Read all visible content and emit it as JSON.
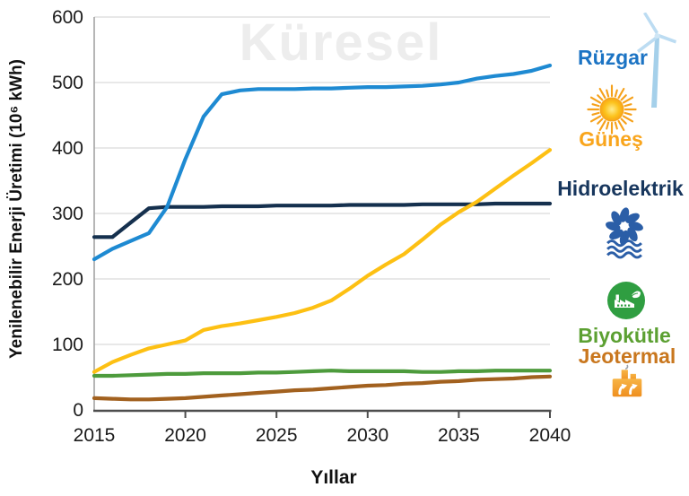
{
  "chart_data": {
    "type": "line",
    "watermark": "Küresel",
    "xlabel": "Yıllar",
    "ylabel": "Yenilenebilir Enerji Üretimi (10⁶ kWh)",
    "x": [
      2015,
      2016,
      2017,
      2018,
      2019,
      2020,
      2021,
      2022,
      2023,
      2024,
      2025,
      2026,
      2027,
      2028,
      2029,
      2030,
      2031,
      2032,
      2033,
      2034,
      2035,
      2036,
      2037,
      2038,
      2039,
      2040
    ],
    "xticks": [
      2015,
      2020,
      2025,
      2030,
      2035,
      2040
    ],
    "ylim": [
      0,
      600
    ],
    "yticks": [
      0,
      100,
      200,
      300,
      400,
      500,
      600
    ],
    "grid": "horizontal",
    "legend_position": "right",
    "series": [
      {
        "name": "Biyokütle",
        "color": "#4d9b3c",
        "values": [
          52,
          52,
          53,
          54,
          55,
          55,
          56,
          56,
          56,
          57,
          57,
          58,
          59,
          60,
          59,
          59,
          59,
          59,
          58,
          58,
          59,
          59,
          60,
          60,
          60,
          60
        ]
      },
      {
        "name": "Jeotermal",
        "color": "#a2611f",
        "values": [
          18,
          17,
          16,
          16,
          17,
          18,
          20,
          22,
          24,
          26,
          28,
          30,
          31,
          33,
          35,
          37,
          38,
          40,
          41,
          43,
          44,
          46,
          47,
          48,
          50,
          51
        ]
      },
      {
        "name": "Hidroelektrik",
        "color": "#15304e",
        "values": [
          264,
          264,
          286,
          308,
          310,
          310,
          310,
          311,
          311,
          311,
          312,
          312,
          312,
          312,
          313,
          313,
          313,
          313,
          314,
          314,
          314,
          314,
          315,
          315,
          315,
          315
        ]
      },
      {
        "name": "Güneş",
        "color": "#fdc013",
        "values": [
          58,
          73,
          84,
          94,
          100,
          106,
          122,
          128,
          132,
          137,
          142,
          148,
          156,
          167,
          185,
          205,
          222,
          238,
          260,
          283,
          302,
          318,
          338,
          358,
          377,
          397
        ]
      },
      {
        "name": "Rüzgar",
        "color": "#1e8ad2",
        "values": [
          230,
          246,
          258,
          270,
          310,
          383,
          448,
          482,
          488,
          490,
          490,
          490,
          491,
          491,
          492,
          493,
          493,
          494,
          495,
          497,
          500,
          506,
          510,
          513,
          518,
          526
        ]
      }
    ]
  },
  "legend": {
    "items": [
      {
        "label": "Rüzgar",
        "color": "#1c74c4",
        "icon": "wind-turbine-icon"
      },
      {
        "label": "Güneş",
        "color": "#f9a51c",
        "icon": "sun-icon"
      },
      {
        "label": "Hidroelektrik",
        "color": "#17365d",
        "icon": "hydro-turbine-icon"
      },
      {
        "label": "Biyokütle",
        "color": "#5ca032",
        "icon": "biomass-icon"
      },
      {
        "label": "Jeotermal",
        "color": "#c9771e",
        "icon": "geothermal-icon"
      }
    ]
  },
  "colors": {
    "gridline": "#d9d9d9",
    "x_axis": "#4d4d4d",
    "y_axis": "#a3a3a3",
    "watermark": "#ededed",
    "turbine_icon": "#b5d9ef",
    "hydro_icon": "#2b5ea7",
    "biomass_icon": "#2f9e41",
    "geothermal_icon": "#f2992b"
  }
}
